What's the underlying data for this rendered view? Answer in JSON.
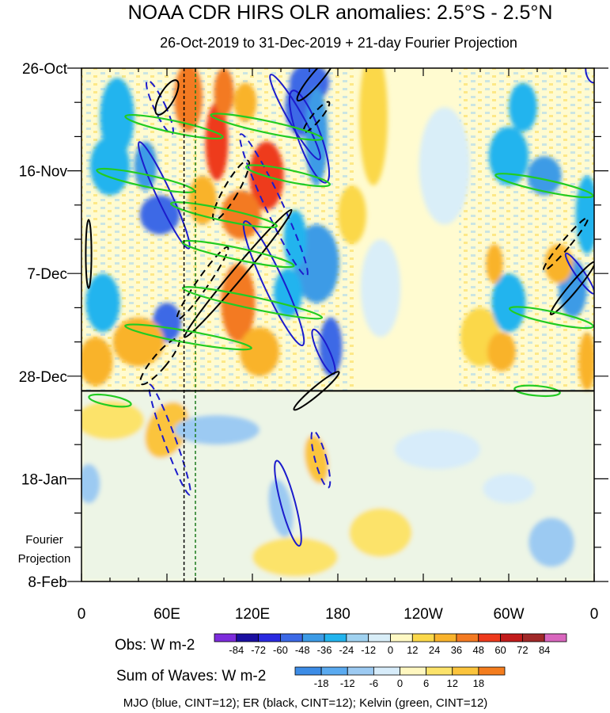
{
  "chart_data": {
    "type": "heatmap",
    "title": "NOAA CDR HIRS OLR anomalies: 2.5°S - 2.5°N",
    "subtitle": "26-Oct-2019 to 31-Dec-2019 + 21-day Fourier Projection",
    "x_ticks": [
      {
        "lon": 0,
        "label": "0"
      },
      {
        "lon": 60,
        "label": "60E"
      },
      {
        "lon": 120,
        "label": "120E"
      },
      {
        "lon": 180,
        "label": "180"
      },
      {
        "lon": 240,
        "label": "120W"
      },
      {
        "lon": 300,
        "label": "60W"
      },
      {
        "lon": 360,
        "label": "0"
      }
    ],
    "y_ticks": [
      {
        "day": 0,
        "label": "26-Oct"
      },
      {
        "day": 21,
        "label": "16-Nov"
      },
      {
        "day": 42,
        "label": "7-Dec"
      },
      {
        "day": 63,
        "label": "28-Dec"
      },
      {
        "day": 84,
        "label": "18-Jan"
      },
      {
        "day": 105,
        "label": "8-Feb"
      }
    ],
    "x_range_deg": [
      0,
      360
    ],
    "y_range_days": [
      0,
      105
    ],
    "projection_start_day": 66,
    "projection_label_line1": "Fourier",
    "projection_label_line2": "Projection",
    "reference_lons": [
      72,
      80
    ],
    "obs_colorbar": {
      "label": "Obs: W m-2",
      "levels": [
        "-84",
        "-72",
        "-60",
        "-48",
        "-36",
        "-24",
        "-12",
        "0",
        "12",
        "24",
        "36",
        "48",
        "60",
        "72",
        "84"
      ],
      "colors": [
        "#7d2cdc",
        "#1a0fa0",
        "#2a2ae0",
        "#3c69e6",
        "#3c9be6",
        "#22b4ee",
        "#a0d2f0",
        "#d9eef8",
        "#fff9c4",
        "#fbd84a",
        "#f9b32c",
        "#f37a22",
        "#ee3a1c",
        "#c21b1b",
        "#a02828",
        "#d966be"
      ]
    },
    "waves_colorbar": {
      "label": "Sum of Waves: W m-2",
      "levels": [
        "-18",
        "-12",
        "-6",
        "0",
        "6",
        "12",
        "18"
      ],
      "colors": [
        "#3c8ce6",
        "#5aaaf0",
        "#9ccaf2",
        "#d7ecfa",
        "#fff7c0",
        "#fce36a",
        "#fbc43c",
        "#f47d1e"
      ]
    },
    "footer": "MJO (blue, CINT=12); ER (black, CINT=12); Kelvin (green, CINT=12)",
    "blobs": [
      {
        "lon": 160,
        "day": 3,
        "rx": 14,
        "ry": 4,
        "val": -50,
        "rot": -20
      },
      {
        "lon": 155,
        "day": 8,
        "rx": 12,
        "ry": 6,
        "val": -55,
        "rot": 0
      },
      {
        "lon": 165,
        "day": 14,
        "rx": 8,
        "ry": 10,
        "val": -40,
        "rot": 0
      },
      {
        "lon": 95,
        "day": 15,
        "rx": 8,
        "ry": 8,
        "val": 50,
        "rot": 0
      },
      {
        "lon": 75,
        "day": 6,
        "rx": 10,
        "ry": 7,
        "val": 40,
        "rot": 0
      },
      {
        "lon": 100,
        "day": 5,
        "rx": 7,
        "ry": 5,
        "val": 45,
        "rot": 0
      },
      {
        "lon": 115,
        "day": 7,
        "rx": 8,
        "ry": 4,
        "val": 30,
        "rot": 0
      },
      {
        "lon": 130,
        "day": 22,
        "rx": 12,
        "ry": 7,
        "val": 55,
        "rot": 0
      },
      {
        "lon": 112,
        "day": 30,
        "rx": 14,
        "ry": 5,
        "val": 40,
        "rot": 0
      },
      {
        "lon": 85,
        "day": 27,
        "rx": 10,
        "ry": 5,
        "val": 30,
        "rot": 0
      },
      {
        "lon": 55,
        "day": 30,
        "rx": 14,
        "ry": 4,
        "val": -60,
        "rot": 0
      },
      {
        "lon": 25,
        "day": 10,
        "rx": 12,
        "ry": 8,
        "val": -30,
        "rot": 0
      },
      {
        "lon": 20,
        "day": 20,
        "rx": 14,
        "ry": 6,
        "val": -28,
        "rot": 0
      },
      {
        "lon": 45,
        "day": 20,
        "rx": 8,
        "ry": 5,
        "val": -40,
        "rot": 0
      },
      {
        "lon": 165,
        "day": 40,
        "rx": 16,
        "ry": 8,
        "val": -45,
        "rot": 0
      },
      {
        "lon": 150,
        "day": 35,
        "rx": 8,
        "ry": 6,
        "val": -30,
        "rot": 0
      },
      {
        "lon": 60,
        "day": 52,
        "rx": 10,
        "ry": 4,
        "val": -55,
        "rot": 0
      },
      {
        "lon": 40,
        "day": 56,
        "rx": 18,
        "ry": 5,
        "val": 30,
        "rot": 0
      },
      {
        "lon": 110,
        "day": 48,
        "rx": 12,
        "ry": 8,
        "val": 36,
        "rot": 0
      },
      {
        "lon": 125,
        "day": 58,
        "rx": 14,
        "ry": 5,
        "val": 30,
        "rot": 0
      },
      {
        "lon": 175,
        "day": 57,
        "rx": 8,
        "ry": 6,
        "val": -55,
        "rot": 0
      },
      {
        "lon": 15,
        "day": 48,
        "rx": 12,
        "ry": 6,
        "val": -30,
        "rot": 0
      },
      {
        "lon": 10,
        "day": 60,
        "rx": 12,
        "ry": 5,
        "val": 28,
        "rot": 0
      },
      {
        "lon": 145,
        "day": 46,
        "rx": 10,
        "ry": 5,
        "val": -25,
        "rot": 0
      },
      {
        "lon": 190,
        "day": 30,
        "rx": 10,
        "ry": 6,
        "val": 12,
        "rot": 0
      },
      {
        "lon": 210,
        "day": 45,
        "rx": 14,
        "ry": 10,
        "val": -12,
        "rot": 0
      },
      {
        "lon": 205,
        "day": 10,
        "rx": 10,
        "ry": 14,
        "val": 14,
        "rot": 0
      },
      {
        "lon": 255,
        "day": 20,
        "rx": 18,
        "ry": 12,
        "val": -10,
        "rot": 0
      },
      {
        "lon": 280,
        "day": 55,
        "rx": 14,
        "ry": 6,
        "val": 14,
        "rot": 0
      },
      {
        "lon": 300,
        "day": 18,
        "rx": 14,
        "ry": 6,
        "val": -36,
        "rot": 0
      },
      {
        "lon": 325,
        "day": 22,
        "rx": 12,
        "ry": 4,
        "val": -40,
        "rot": 0
      },
      {
        "lon": 345,
        "day": 45,
        "rx": 10,
        "ry": 6,
        "val": -45,
        "rot": 0
      },
      {
        "lon": 355,
        "day": 30,
        "rx": 8,
        "ry": 8,
        "val": -30,
        "rot": 0
      },
      {
        "lon": 335,
        "day": 40,
        "rx": 10,
        "ry": 4,
        "val": 30,
        "rot": 0
      },
      {
        "lon": 300,
        "day": 48,
        "rx": 12,
        "ry": 6,
        "val": -30,
        "rot": 0
      },
      {
        "lon": 295,
        "day": 58,
        "rx": 10,
        "ry": 4,
        "val": 28,
        "rot": 0
      },
      {
        "lon": 355,
        "day": 60,
        "rx": 6,
        "ry": 6,
        "val": 25,
        "rot": 0
      },
      {
        "lon": 310,
        "day": 8,
        "rx": 10,
        "ry": 5,
        "val": -25,
        "rot": 0
      },
      {
        "lon": 290,
        "day": 40,
        "rx": 6,
        "ry": 4,
        "val": 24,
        "rot": 0
      }
    ],
    "proj_blobs": [
      {
        "lon": 60,
        "day": 74,
        "rx": 14,
        "ry": 6,
        "val": 12,
        "rot": 25
      },
      {
        "lon": 165,
        "day": 80,
        "rx": 8,
        "ry": 5,
        "val": 14,
        "rot": -10
      },
      {
        "lon": 140,
        "day": 90,
        "rx": 8,
        "ry": 6,
        "val": -9,
        "rot": -10
      },
      {
        "lon": 20,
        "day": 72,
        "rx": 24,
        "ry": 4,
        "val": 6,
        "rot": 0
      },
      {
        "lon": 95,
        "day": 74,
        "rx": 30,
        "ry": 3,
        "val": -7,
        "rot": 0
      },
      {
        "lon": 5,
        "day": 85,
        "rx": 8,
        "ry": 4,
        "val": -9,
        "rot": 0
      },
      {
        "lon": 210,
        "day": 95,
        "rx": 22,
        "ry": 5,
        "val": 7,
        "rot": 0
      },
      {
        "lon": 330,
        "day": 97,
        "rx": 16,
        "ry": 5,
        "val": -8,
        "rot": 0
      },
      {
        "lon": 250,
        "day": 78,
        "rx": 30,
        "ry": 4,
        "val": -4,
        "rot": 0
      },
      {
        "lon": 300,
        "day": 86,
        "rx": 18,
        "ry": 3,
        "val": -6,
        "rot": 0
      },
      {
        "lon": 150,
        "day": 100,
        "rx": 30,
        "ry": 4,
        "val": 6,
        "rot": 0
      }
    ],
    "contours": [
      {
        "type": "mjo",
        "dash": false,
        "lon": 360,
        "day": 0,
        "rx": 6,
        "ry": 3,
        "rot": 0
      },
      {
        "type": "mjo",
        "dash": false,
        "lon": 150,
        "day": 10,
        "rx": 5,
        "ry": 10,
        "rot": -30
      },
      {
        "lon": 160,
        "day": 14,
        "rx": 8,
        "ry": 10,
        "rot": -20,
        "type": "mjo",
        "dash": false
      },
      {
        "type": "mjo",
        "dash": true,
        "lon": 135,
        "day": 28,
        "rx": 6,
        "ry": 16,
        "rot": -25
      },
      {
        "type": "mjo",
        "dash": false,
        "lon": 135,
        "day": 44,
        "rx": 7,
        "ry": 14,
        "rot": -25
      },
      {
        "type": "mjo",
        "dash": false,
        "lon": 58,
        "day": 26,
        "rx": 5,
        "ry": 12,
        "rot": -25
      },
      {
        "type": "mjo",
        "dash": true,
        "lon": 55,
        "day": 8,
        "rx": 4,
        "ry": 6,
        "rot": -25
      },
      {
        "type": "mjo",
        "dash": false,
        "lon": 170,
        "day": 58,
        "rx": 4,
        "ry": 5,
        "rot": -25
      },
      {
        "type": "mjo",
        "dash": true,
        "lon": 62,
        "day": 76,
        "rx": 4,
        "ry": 12,
        "rot": -20
      },
      {
        "type": "mjo",
        "dash": false,
        "lon": 145,
        "day": 89,
        "rx": 5,
        "ry": 9,
        "rot": -15
      },
      {
        "type": "mjo",
        "dash": true,
        "lon": 168,
        "day": 80,
        "rx": 4,
        "ry": 6,
        "rot": -15
      },
      {
        "type": "mjo",
        "dash": false,
        "lon": 350,
        "day": 42,
        "rx": 3,
        "ry": 5,
        "rot": -35
      },
      {
        "type": "er",
        "dash": false,
        "lon": 60,
        "day": 6,
        "rx": 5,
        "ry": 4,
        "rot": 30
      },
      {
        "type": "er",
        "dash": true,
        "lon": 105,
        "day": 25,
        "rx": 5,
        "ry": 7,
        "rot": 30
      },
      {
        "type": "er",
        "dash": false,
        "lon": 110,
        "day": 42,
        "rx": 4,
        "ry": 17,
        "rot": 40
      },
      {
        "type": "er",
        "dash": true,
        "lon": 85,
        "day": 44,
        "rx": 4,
        "ry": 9,
        "rot": 35
      },
      {
        "type": "er",
        "dash": false,
        "lon": 165,
        "day": 2,
        "rx": 4,
        "ry": 6,
        "rot": 40
      },
      {
        "type": "er",
        "dash": true,
        "lon": 165,
        "day": 10,
        "rx": 3,
        "ry": 4,
        "rot": 40
      },
      {
        "type": "er",
        "dash": false,
        "lon": 165,
        "day": 66,
        "rx": 3,
        "ry": 6,
        "rot": 50
      },
      {
        "type": "er",
        "dash": true,
        "lon": 340,
        "day": 36,
        "rx": 3,
        "ry": 7,
        "rot": 40
      },
      {
        "type": "er",
        "dash": false,
        "lon": 345,
        "day": 45,
        "rx": 3,
        "ry": 7,
        "rot": 40
      },
      {
        "type": "er",
        "dash": false,
        "lon": 5,
        "day": 38,
        "rx": 2,
        "ry": 7,
        "rot": 0
      },
      {
        "type": "er",
        "dash": true,
        "lon": 55,
        "day": 60,
        "rx": 5,
        "ry": 6,
        "rot": 40
      },
      {
        "type": "kelvin",
        "dash": false,
        "lon": 65,
        "day": 12,
        "rx": 35,
        "ry": 1.2,
        "rot": 12
      },
      {
        "type": "kelvin",
        "dash": false,
        "lon": 45,
        "day": 23,
        "rx": 35,
        "ry": 1.2,
        "rot": 12
      },
      {
        "type": "kelvin",
        "dash": false,
        "lon": 100,
        "day": 30,
        "rx": 38,
        "ry": 1.2,
        "rot": 12
      },
      {
        "type": "kelvin",
        "dash": false,
        "lon": 145,
        "day": 22,
        "rx": 30,
        "ry": 1.2,
        "rot": 12
      },
      {
        "type": "kelvin",
        "dash": false,
        "lon": 130,
        "day": 12,
        "rx": 40,
        "ry": 1.2,
        "rot": 12
      },
      {
        "type": "kelvin",
        "dash": false,
        "lon": 110,
        "day": 38,
        "rx": 40,
        "ry": 1.2,
        "rot": 12
      },
      {
        "type": "kelvin",
        "dash": false,
        "lon": 120,
        "day": 48,
        "rx": 50,
        "ry": 1.2,
        "rot": 12
      },
      {
        "type": "kelvin",
        "dash": false,
        "lon": 75,
        "day": 55,
        "rx": 45,
        "ry": 1.2,
        "rot": 10
      },
      {
        "type": "kelvin",
        "dash": false,
        "lon": 20,
        "day": 68,
        "rx": 15,
        "ry": 1.0,
        "rot": 10
      },
      {
        "type": "kelvin",
        "dash": false,
        "lon": 325,
        "day": 24,
        "rx": 35,
        "ry": 1.2,
        "rot": 12
      },
      {
        "type": "kelvin",
        "dash": false,
        "lon": 330,
        "day": 51,
        "rx": 30,
        "ry": 1.2,
        "rot": 12
      },
      {
        "type": "kelvin",
        "dash": false,
        "lon": 320,
        "day": 66,
        "rx": 16,
        "ry": 1.0,
        "rot": 5
      }
    ]
  }
}
